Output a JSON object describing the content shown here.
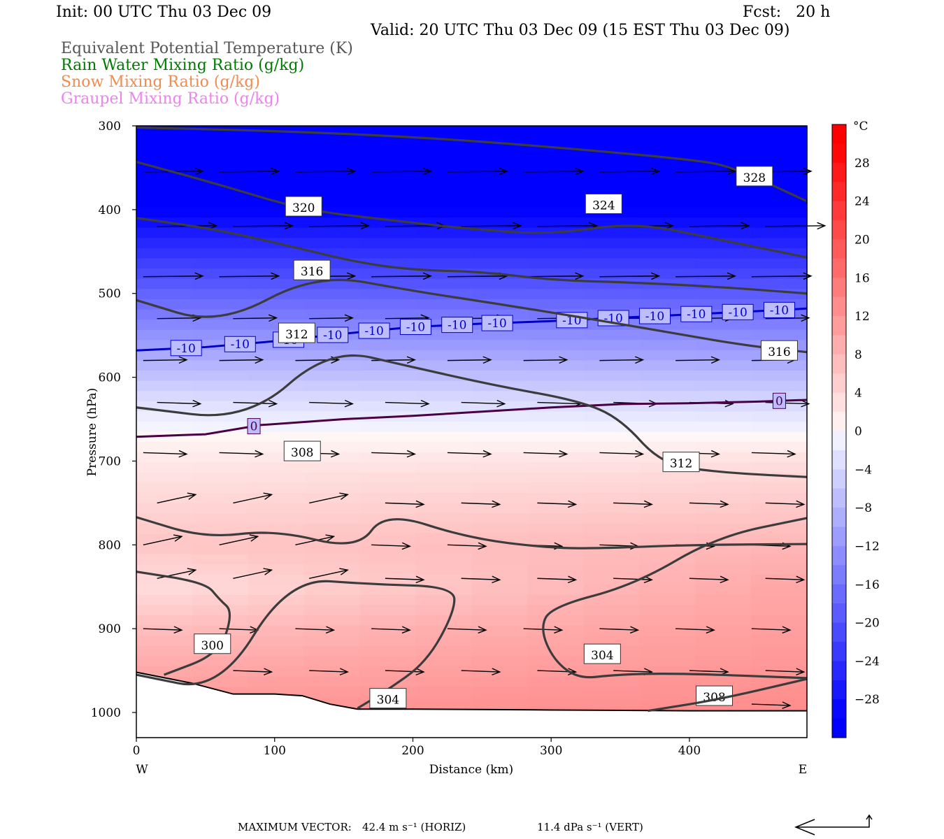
{
  "header": {
    "init": "Init: 00 UTC Thu 03 Dec 09",
    "fcst": "Fcst:   20 h",
    "valid": "Valid: 20 UTC Thu 03 Dec 09 (15 EST Thu 03 Dec 09)"
  },
  "legend": [
    {
      "label": "Equivalent Potential Temperature (K)",
      "color": "#555555"
    },
    {
      "label": "Rain Water Mixing Ratio (g/kg)",
      "color": "#007a00"
    },
    {
      "label": "Snow Mixing Ratio (g/kg)",
      "color": "#f08c50"
    },
    {
      "label": "Graupel Mixing Ratio (g/kg)",
      "color": "#ee82ee"
    }
  ],
  "chart_data": {
    "type": "cross-section",
    "xlabel": "Distance (km)",
    "ylabel": "Pressure (hPa)",
    "xlim": [
      0,
      485
    ],
    "ylim": [
      1030,
      300
    ],
    "x_ticks": [
      "0",
      "100",
      "200",
      "300",
      "400"
    ],
    "y_ticks": [
      "300",
      "400",
      "500",
      "600",
      "700",
      "800",
      "900",
      "1000"
    ],
    "x_end_left": "W",
    "x_end_right": "E",
    "colorbar": {
      "unit": "°C",
      "labels": [
        "28",
        "24",
        "20",
        "16",
        "12",
        "8",
        "4",
        "0",
        "−4",
        "−8",
        "−12",
        "−16",
        "−20",
        "−24",
        "−28"
      ],
      "min": -32,
      "max": 32,
      "low_color": "#0000ff",
      "high_color": "#ff0000"
    },
    "temperature_field": {
      "pressure_levels": [
        300,
        400,
        500,
        560,
        620,
        650,
        700,
        800,
        850,
        900,
        1000
      ],
      "values_west": [
        -34,
        -30,
        -18,
        -11,
        -4,
        -1,
        2,
        6,
        3,
        7,
        12
      ],
      "values_east": [
        -34,
        -30,
        -19,
        -12,
        -5,
        -2,
        3,
        8,
        10,
        11,
        13
      ]
    },
    "isotherms": [
      {
        "label": "-10",
        "color": "#0000cc",
        "x": [
          0,
          50,
          100,
          150,
          200,
          250,
          300,
          350,
          400,
          450,
          485
        ],
        "p": [
          568,
          564,
          557,
          548,
          540,
          536,
          533,
          529,
          525,
          521,
          518
        ],
        "label_x": [
          36,
          75,
          110,
          142,
          172,
          202,
          232,
          261,
          315,
          345,
          375,
          405,
          435,
          465
        ]
      },
      {
        "label": "0",
        "color": "#4b0046",
        "x": [
          0,
          50,
          90,
          150,
          200,
          250,
          300,
          350,
          400,
          450,
          485
        ],
        "p": [
          671,
          668,
          657,
          650,
          646,
          641,
          636,
          632,
          631,
          629,
          627
        ],
        "label_x": [
          85,
          465
        ]
      }
    ],
    "theta_e": [
      {
        "label": "328",
        "x": [
          0,
          100,
          200,
          300,
          400,
          430,
          485
        ],
        "p": [
          302,
          306,
          313,
          325,
          340,
          348,
          390
        ],
        "label_at": [
          [
            447,
            360
          ]
        ]
      },
      {
        "label": "324",
        "x": [
          0,
          60,
          120,
          180,
          240,
          300,
          360,
          420,
          485
        ],
        "p": [
          343,
          370,
          400,
          412,
          423,
          430,
          415,
          435,
          457
        ],
        "label_at": [
          [
            338,
            393
          ]
        ]
      },
      {
        "label": "320",
        "x": [
          0,
          60,
          120,
          160,
          200,
          250,
          300,
          360,
          420,
          485
        ],
        "p": [
          410,
          424,
          447,
          463,
          472,
          474,
          484,
          487,
          492,
          500
        ],
        "label_at": [
          [
            121,
            396
          ]
        ]
      },
      {
        "label": "316",
        "x": [
          0,
          60,
          130,
          200,
          260,
          320,
          380,
          440,
          485
        ],
        "p": [
          508,
          538,
          476,
          497,
          512,
          528,
          545,
          562,
          570
        ],
        "label_at": [
          [
            127,
            472
          ],
          [
            465,
            568
          ]
        ]
      },
      {
        "label": "312",
        "x": [
          0,
          80,
          140,
          200,
          260,
          320,
          350,
          380,
          420,
          460,
          485
        ],
        "p": [
          636,
          652,
          565,
          588,
          610,
          628,
          649,
          704,
          713,
          717,
          719
        ],
        "label_at": [
          [
            116,
            547
          ],
          [
            394,
            701
          ]
        ]
      },
      {
        "label": "308",
        "x": [
          0,
          50,
          100,
          160,
          180,
          240,
          300,
          340,
          400,
          485
        ],
        "p": [
          767,
          792,
          782,
          806,
          760,
          792,
          804,
          804,
          800,
          799
        ],
        "label_at": [
          [
            120,
            688
          ],
          [
            418,
            980
          ]
        ]
      },
      {
        "label": "300",
        "x": [
          0,
          50,
          60,
          70,
          60,
          20
        ],
        "p": [
          832,
          845,
          865,
          880,
          930,
          955
        ],
        "label_at": [
          [
            55,
            918
          ]
        ]
      },
      {
        "label": "304",
        "x": [
          0,
          60,
          110,
          170,
          230,
          230,
          210,
          180,
          160
        ],
        "p": [
          955,
          975,
          840,
          847,
          850,
          880,
          940,
          975,
          995
        ],
        "label_at": [
          [
            182,
            983
          ],
          [
            337,
            930
          ]
        ]
      },
      {
        "label": "304",
        "x": [
          485,
          420,
          360,
          300,
          292,
          302,
          320,
          345,
          390,
          485
        ],
        "p": [
          768,
          790,
          848,
          874,
          900,
          938,
          960,
          955,
          953,
          959
        ],
        "label_at": []
      },
      {
        "label": "308",
        "x": [
          370,
          420,
          485
        ],
        "p": [
          998,
          985,
          960
        ],
        "label_at": []
      }
    ],
    "terrain": {
      "x": [
        0,
        40,
        70,
        100,
        120,
        140,
        160,
        200,
        300,
        400,
        485
      ],
      "p": [
        952,
        965,
        978,
        978,
        980,
        990,
        996,
        996,
        997,
        998,
        998
      ]
    }
  },
  "footer": {
    "max_vector_label": "MAXIMUM VECTOR:",
    "horiz": "42.4 m s⁻¹ (HORIZ)",
    "vert": "11.4 dPa s⁻¹ (VERT)"
  }
}
